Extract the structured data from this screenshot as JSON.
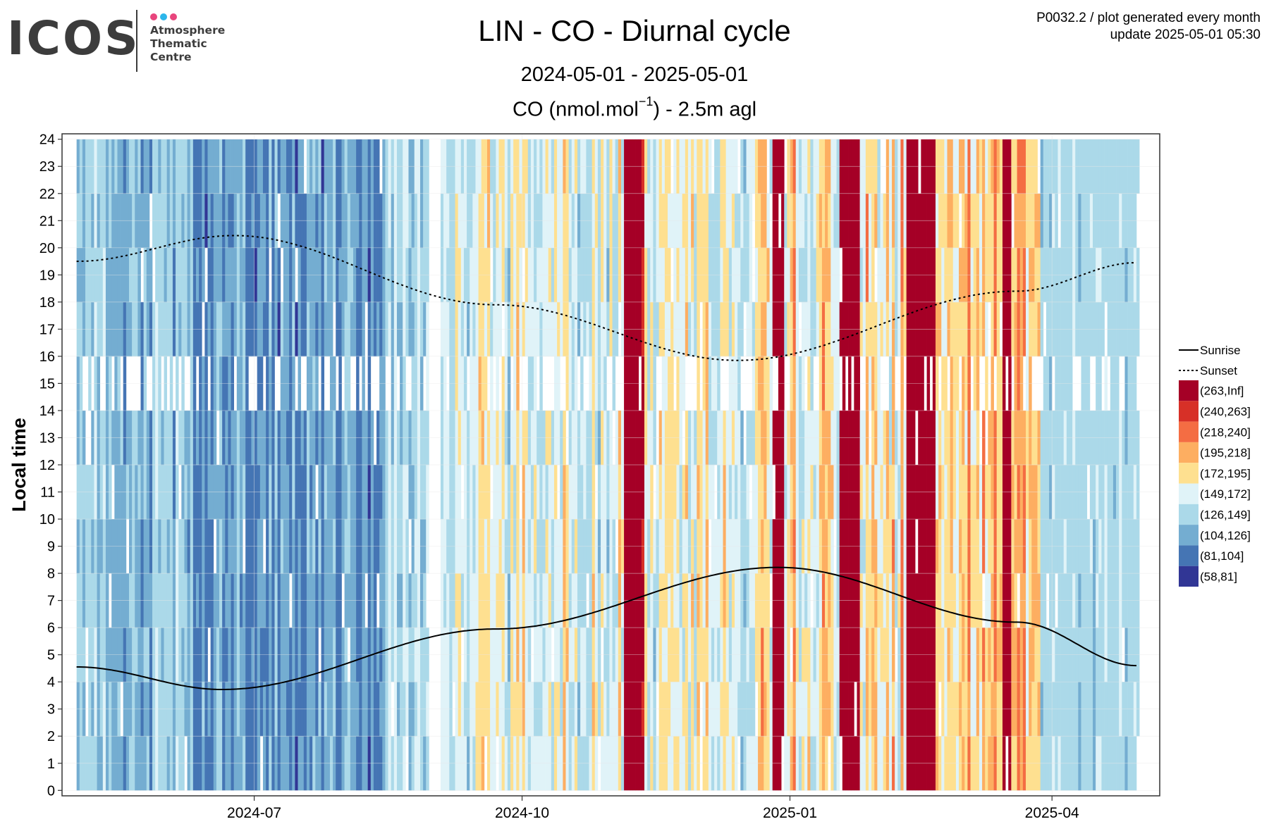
{
  "logo": {
    "word": "ICOS",
    "lines": [
      "Atmosphere",
      "Thematic",
      "Centre"
    ],
    "dot_colors": [
      "#e8457d",
      "#2db6ea",
      "#e8457d"
    ]
  },
  "header": {
    "title": "LIN - CO - Diurnal cycle",
    "subtitle": "2024-05-01 - 2025-05-01",
    "measurement_main": "CO (nmol.mol",
    "measurement_sup": "−1",
    "measurement_tail": ") - 2.5m agl",
    "plot_id": "P0032.2 / plot generated every month",
    "update": "update  2025-05-01 05:30"
  },
  "chart_data": {
    "type": "heatmap",
    "x_range": [
      "2024-04-26",
      "2025-05-08"
    ],
    "data_start": "2024-05-01",
    "data_end": "2025-04-30",
    "y_range": [
      -0.2,
      24.2
    ],
    "ylabel": "Local time",
    "xlabel": "",
    "grid": true,
    "x_ticks": [
      {
        "date": "2024-07-01",
        "label": "2024-07"
      },
      {
        "date": "2024-10-01",
        "label": "2024-10"
      },
      {
        "date": "2025-01-01",
        "label": "2025-01"
      },
      {
        "date": "2025-04-01",
        "label": "2025-04"
      }
    ],
    "y_ticks": [
      0,
      1,
      2,
      3,
      4,
      5,
      6,
      7,
      8,
      9,
      10,
      11,
      12,
      13,
      14,
      15,
      16,
      17,
      18,
      19,
      20,
      21,
      22,
      23,
      24
    ],
    "legend_position": "right",
    "legend": {
      "lines": [
        {
          "name": "Sunrise",
          "style": "solid"
        },
        {
          "name": "Sunset",
          "style": "dotted"
        }
      ],
      "bins": [
        {
          "label": "(263,Inf]",
          "color": "#a50026"
        },
        {
          "label": "(240,263]",
          "color": "#d73027"
        },
        {
          "label": "(218,240]",
          "color": "#f46d43"
        },
        {
          "label": "(195,218]",
          "color": "#fdae61"
        },
        {
          "label": "(172,195]",
          "color": "#fee090"
        },
        {
          "label": "(149,172]",
          "color": "#e0f3f8"
        },
        {
          "label": "(126,149]",
          "color": "#abd9e9"
        },
        {
          "label": "(104,126]",
          "color": "#74add1"
        },
        {
          "label": "(81,104]",
          "color": "#4575b4"
        },
        {
          "label": "(58,81]",
          "color": "#313695"
        }
      ]
    },
    "sunrise": [
      {
        "date": "2024-05-01",
        "hour": 4.55
      },
      {
        "date": "2024-06-20",
        "hour": 3.72
      },
      {
        "date": "2024-09-22",
        "hour": 5.95
      },
      {
        "date": "2024-12-28",
        "hour": 8.22
      },
      {
        "date": "2025-03-20",
        "hour": 6.2
      },
      {
        "date": "2025-04-30",
        "hour": 4.6
      }
    ],
    "sunset": [
      {
        "date": "2024-05-01",
        "hour": 19.5
      },
      {
        "date": "2024-06-24",
        "hour": 20.45
      },
      {
        "date": "2024-09-22",
        "hour": 17.9
      },
      {
        "date": "2024-12-14",
        "hour": 15.85
      },
      {
        "date": "2025-03-20",
        "hour": 18.4
      },
      {
        "date": "2025-04-30",
        "hour": 19.45
      }
    ],
    "cell_values_note": "",
    "regimes": [
      {
        "from": "2024-05-01",
        "to": "2024-06-10",
        "mean": 128,
        "spread": 28
      },
      {
        "from": "2024-06-10",
        "to": "2024-08-15",
        "mean": 108,
        "spread": 26
      },
      {
        "from": "2024-08-15",
        "to": "2024-09-05",
        "mean": 140,
        "spread": 25
      },
      {
        "from": "2024-09-05",
        "to": "2024-11-05",
        "mean": 165,
        "spread": 38
      },
      {
        "from": "2024-11-05",
        "to": "2024-11-12",
        "mean": 275,
        "spread": 20
      },
      {
        "from": "2024-11-12",
        "to": "2024-12-20",
        "mean": 165,
        "spread": 42
      },
      {
        "from": "2024-12-20",
        "to": "2025-01-05",
        "mean": 175,
        "spread": 45
      },
      {
        "from": "2025-01-05",
        "to": "2025-02-10",
        "mean": 185,
        "spread": 50
      },
      {
        "from": "2025-02-10",
        "to": "2025-02-20",
        "mean": 280,
        "spread": 15
      },
      {
        "from": "2025-02-20",
        "to": "2025-03-28",
        "mean": 195,
        "spread": 40
      },
      {
        "from": "2025-03-28",
        "to": "2025-04-30",
        "mean": 138,
        "spread": 14
      }
    ],
    "high_bands": [
      {
        "from": "2024-11-05",
        "to": "2024-11-11"
      },
      {
        "from": "2024-12-26",
        "to": "2024-12-30"
      },
      {
        "from": "2025-01-18",
        "to": "2025-01-25"
      },
      {
        "from": "2025-02-11",
        "to": "2025-02-19"
      },
      {
        "from": "2025-03-15",
        "to": "2025-03-18"
      }
    ],
    "gaps": [
      {
        "from": "2024-08-30",
        "to": "2024-09-03",
        "hours": "all"
      },
      {
        "from": "2024-05-01",
        "to": "2025-04-30",
        "hours": "13-15",
        "fraction": 0.35
      }
    ]
  }
}
